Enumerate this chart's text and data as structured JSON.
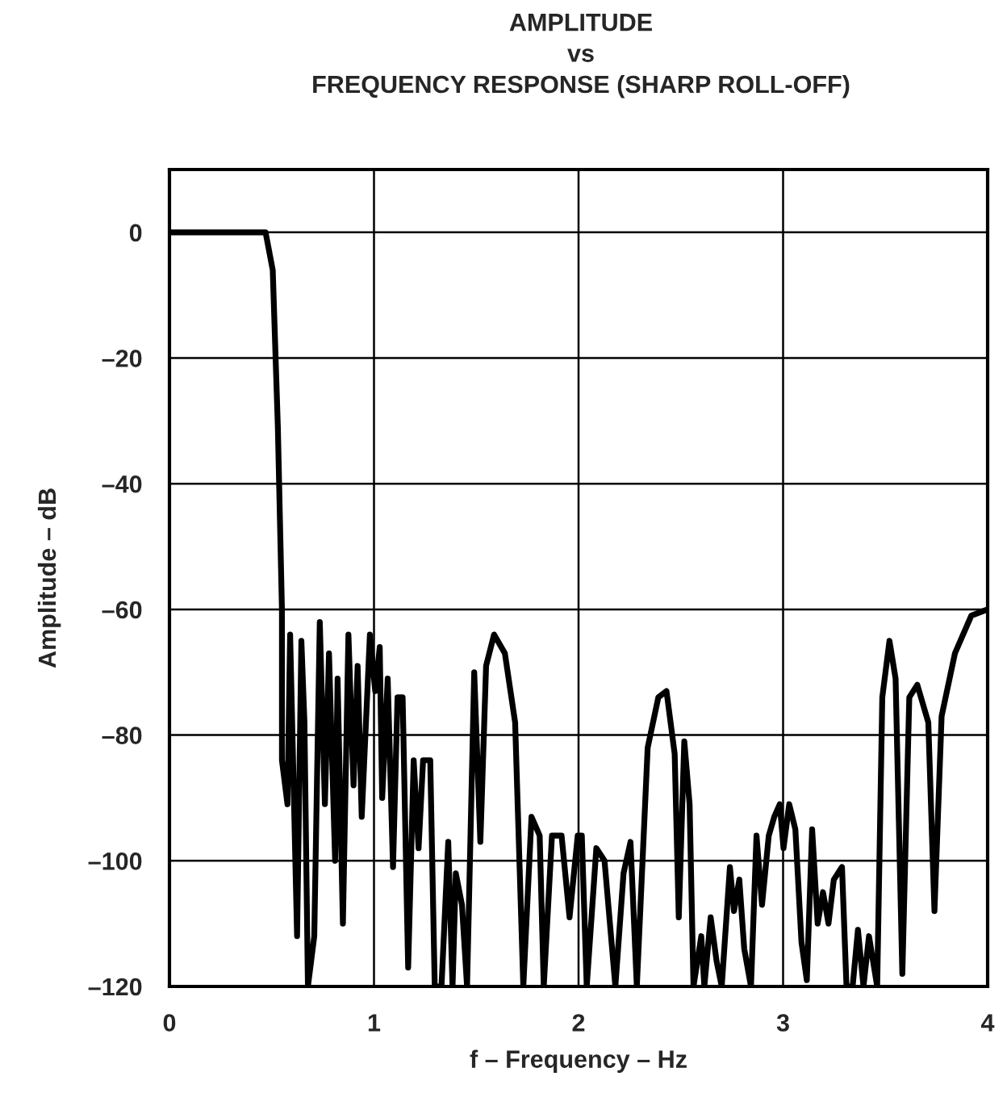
{
  "chart_data": {
    "type": "line",
    "title": "AMPLITUDE\nvs\nFREQUENCY RESPONSE (SHARP ROLL-OFF)",
    "xlabel": "f – Frequency – Hz",
    "ylabel": "Amplitude – dB",
    "xlim": [
      0,
      4
    ],
    "ylim": [
      -120,
      10
    ],
    "xticks": [
      0,
      1,
      2,
      3,
      4
    ],
    "yticks": [
      {
        "value": 0,
        "label": "0"
      },
      {
        "value": -20,
        "label": "–20"
      },
      {
        "value": -40,
        "label": "–40"
      },
      {
        "value": -60,
        "label": "–60"
      },
      {
        "value": -80,
        "label": "–80"
      },
      {
        "value": -100,
        "label": "–100"
      },
      {
        "value": -120,
        "label": "–120"
      }
    ],
    "grid": true,
    "legend": false,
    "marker": "none",
    "line_style": "solid",
    "series": [
      {
        "color": "#000000",
        "x": [
          0,
          0.47,
          0.505,
          0.53,
          0.55,
          0.55,
          0.577,
          0.59,
          0.605,
          0.624,
          0.645,
          0.66,
          0.677,
          0.708,
          0.735,
          0.76,
          0.78,
          0.81,
          0.822,
          0.848,
          0.875,
          0.9,
          0.92,
          0.94,
          0.98,
          1.006,
          1.028,
          1.04,
          1.067,
          1.093,
          1.115,
          1.14,
          1.167,
          1.194,
          1.218,
          1.24,
          1.275,
          1.297,
          1.33,
          1.363,
          1.384,
          1.4,
          1.43,
          1.455,
          1.49,
          1.52,
          1.548,
          1.587,
          1.64,
          1.69,
          1.73,
          1.77,
          1.81,
          1.83,
          1.87,
          1.917,
          1.956,
          1.996,
          2.016,
          2.04,
          2.087,
          2.127,
          2.18,
          2.22,
          2.254,
          2.285,
          2.338,
          2.39,
          2.43,
          2.47,
          2.49,
          2.517,
          2.543,
          2.562,
          2.6,
          2.615,
          2.646,
          2.675,
          2.7,
          2.74,
          2.76,
          2.786,
          2.81,
          2.843,
          2.87,
          2.897,
          2.93,
          2.957,
          2.984,
          3.002,
          3.03,
          3.06,
          3.09,
          3.116,
          3.142,
          3.169,
          3.195,
          3.222,
          3.248,
          3.288,
          3.31,
          3.34,
          3.366,
          3.393,
          3.42,
          3.46,
          3.485,
          3.52,
          3.55,
          3.583,
          3.617,
          3.656,
          3.71,
          3.74,
          3.775,
          3.84,
          3.92,
          4.0
        ],
        "values": [
          0,
          0,
          -6,
          -31,
          -60,
          -84,
          -91,
          -64,
          -85,
          -112,
          -65,
          -78,
          -120,
          -112,
          -62,
          -91,
          -67,
          -100,
          -71,
          -110,
          -64,
          -88,
          -69,
          -93,
          -64,
          -73,
          -66,
          -90,
          -71,
          -101,
          -74,
          -74,
          -117,
          -84,
          -98,
          -84,
          -84,
          -120,
          -120,
          -97,
          -120,
          -102,
          -107,
          -120,
          -70,
          -97,
          -69,
          -64,
          -67,
          -78,
          -120,
          -93,
          -96,
          -120,
          -96,
          -96,
          -109,
          -96,
          -96,
          -120,
          -98,
          -100,
          -120,
          -102,
          -97,
          -120,
          -82,
          -74,
          -73,
          -83,
          -109,
          -81,
          -91,
          -120,
          -112,
          -120,
          -109,
          -116,
          -120,
          -101,
          -108,
          -103,
          -114,
          -120,
          -96,
          -107,
          -96,
          -93,
          -91,
          -98,
          -91,
          -95,
          -113,
          -119,
          -95,
          -110,
          -105,
          -110,
          -103,
          -101,
          -120,
          -120,
          -111,
          -120,
          -112,
          -120,
          -74,
          -65,
          -71,
          -118,
          -74,
          -72,
          -78,
          -108,
          -77,
          -67,
          -61,
          -60
        ]
      }
    ]
  }
}
